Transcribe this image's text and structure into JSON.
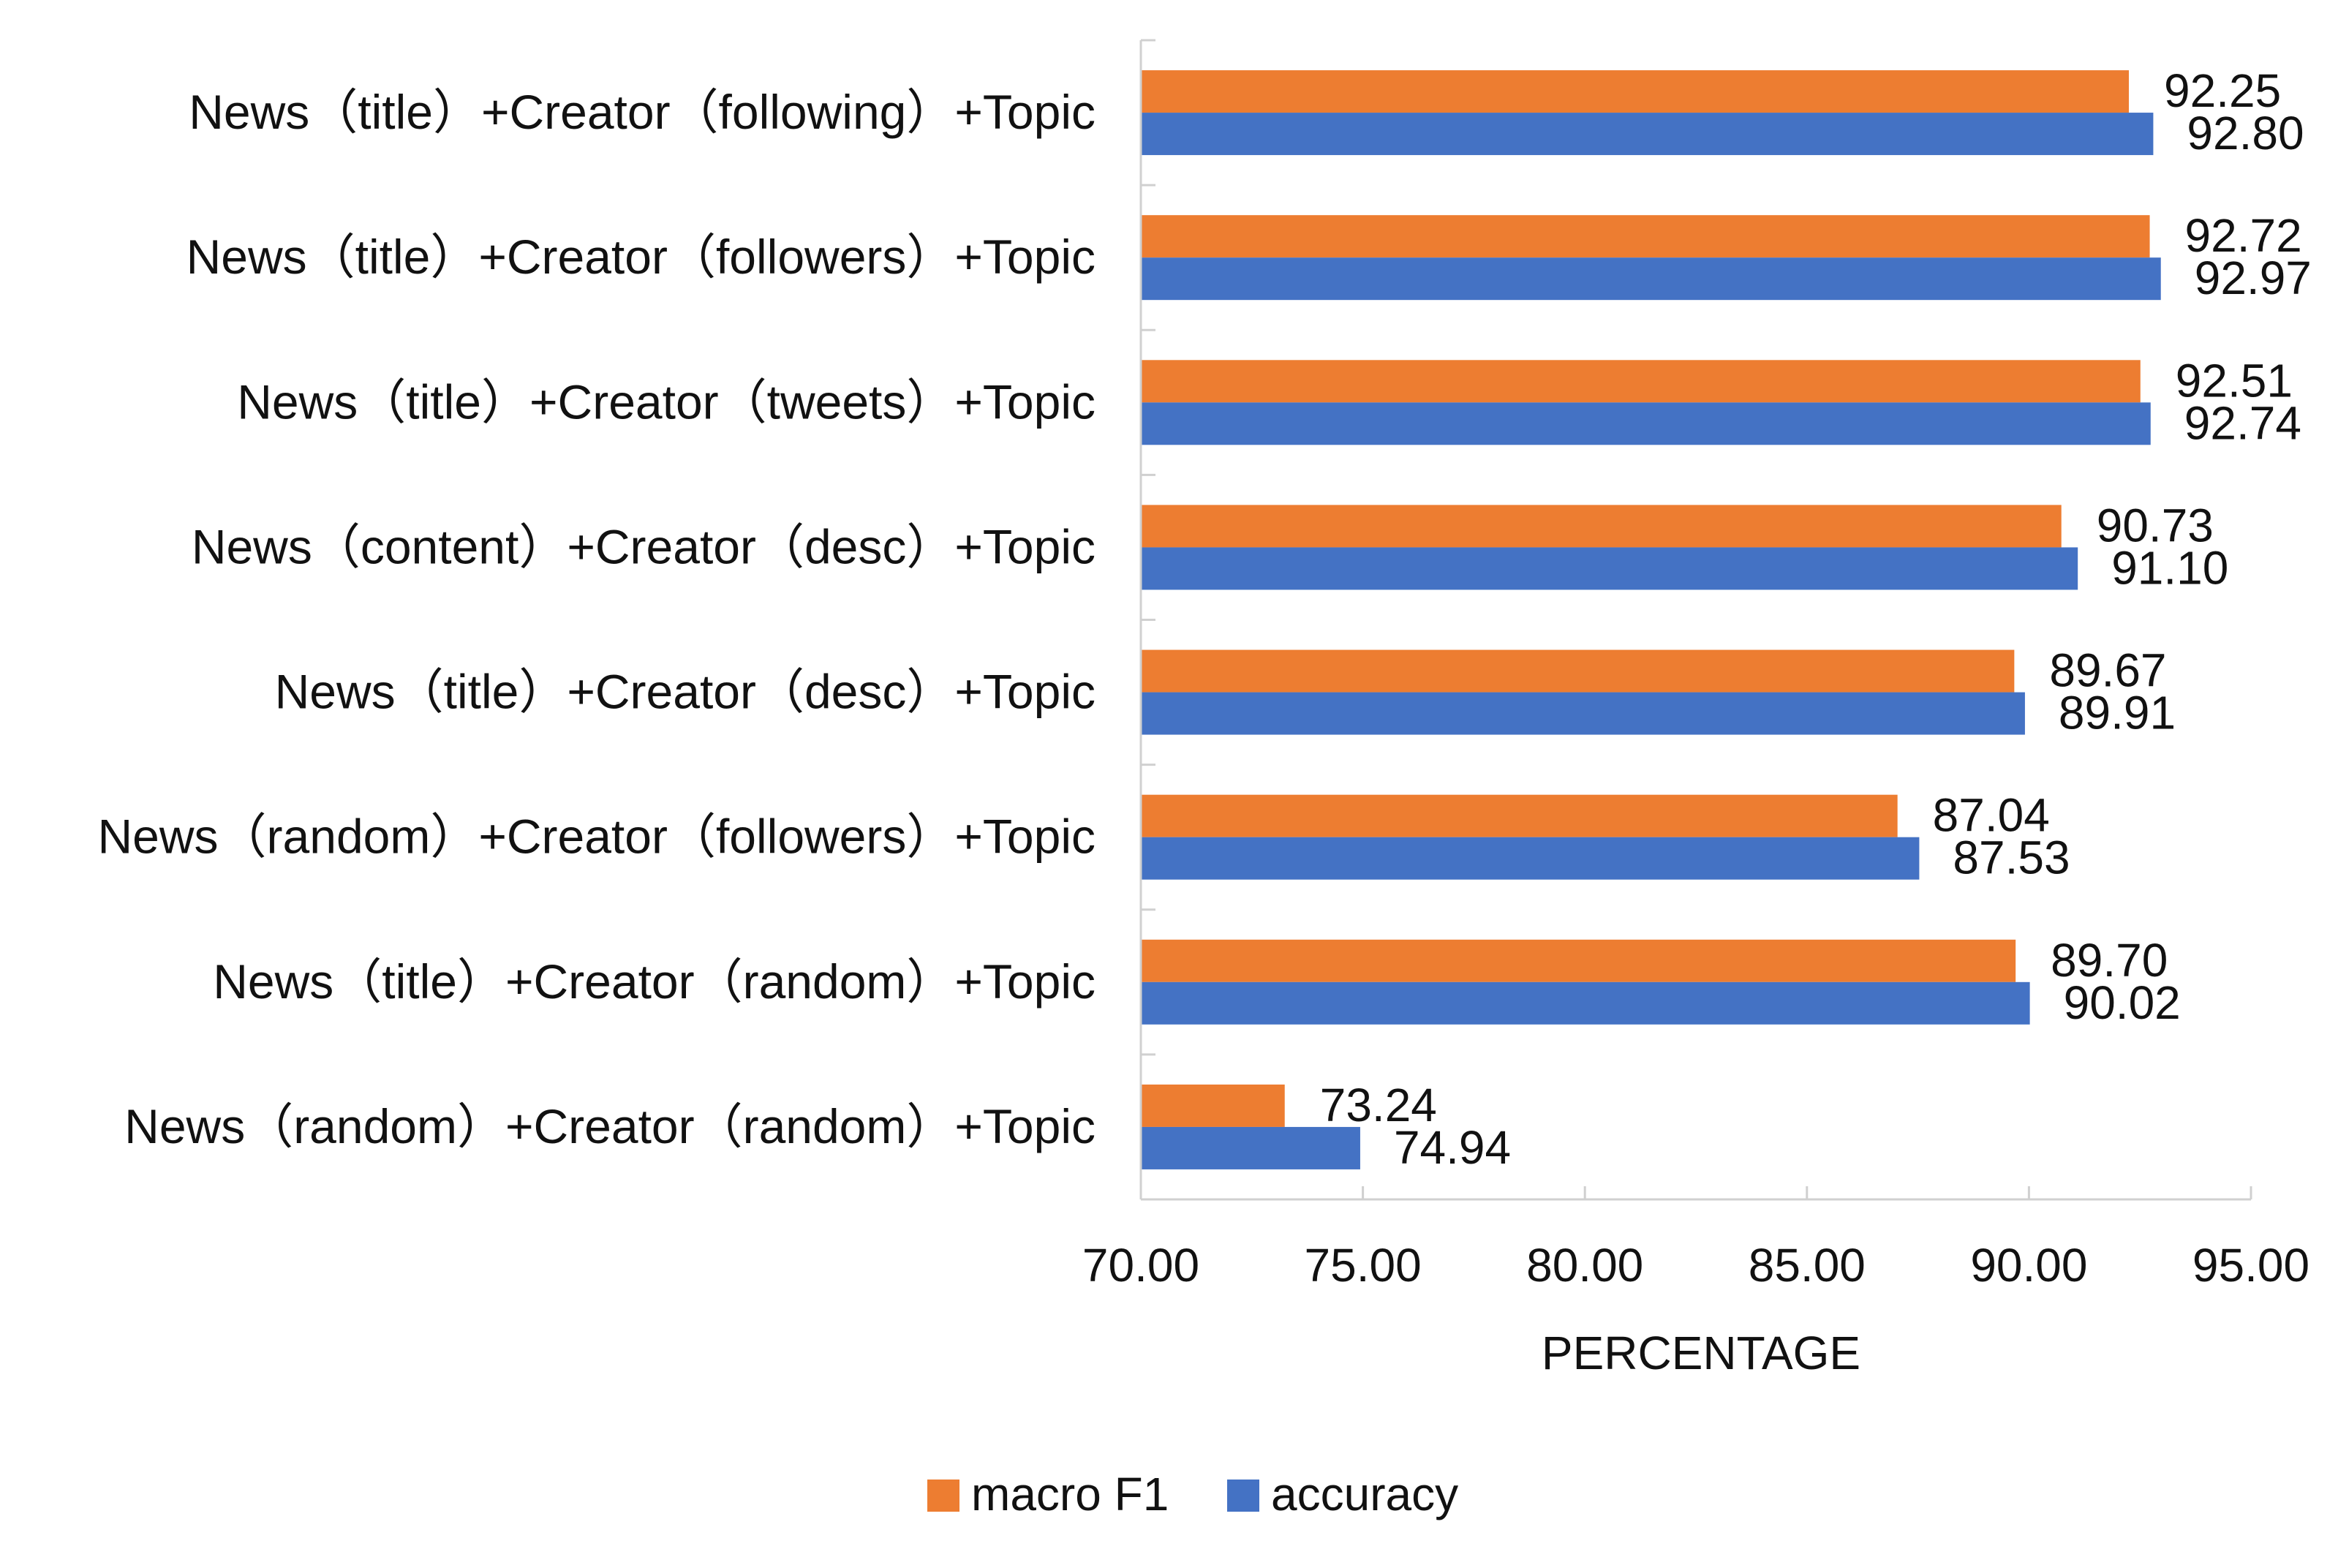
{
  "chart_data": {
    "type": "bar",
    "orientation": "horizontal",
    "categories": [
      "News（title）+Creator（following）+Topic",
      "News（title）+Creator（followers）+Topic",
      "News（title）+Creator（tweets）+Topic",
      "News（content）+Creator（desc）+Topic",
      "News（title）+Creator（desc）+Topic",
      "News（random）+Creator（followers）+Topic",
      "News（title）+Creator（random）+Topic",
      "News（random）+Creator（random）+Topic"
    ],
    "series": [
      {
        "name": "macro F1",
        "color": "#ED7D31",
        "values": [
          92.25,
          92.72,
          92.51,
          90.73,
          89.67,
          87.04,
          89.7,
          73.24
        ],
        "labels": [
          "92.25",
          "92.72",
          "92.51",
          "90.73",
          "89.67",
          "87.04",
          "89.70",
          "73.24"
        ]
      },
      {
        "name": "accuracy",
        "color": "#4472C4",
        "values": [
          92.8,
          92.97,
          92.74,
          91.1,
          89.91,
          87.53,
          90.02,
          74.94
        ],
        "labels": [
          "92.80",
          "92.97",
          "92.74",
          "91.10",
          "89.91",
          "87.53",
          "90.02",
          "74.94"
        ]
      }
    ],
    "xlabel": "PERCENTAGE",
    "ylabel": "",
    "title": "",
    "xlim": [
      70,
      95
    ],
    "xticks": [
      70,
      75,
      80,
      85,
      90,
      95
    ],
    "xtick_labels": [
      "70.00",
      "75.00",
      "80.00",
      "85.00",
      "90.00",
      "95.00"
    ],
    "grid": false,
    "legend_position": "bottom"
  }
}
